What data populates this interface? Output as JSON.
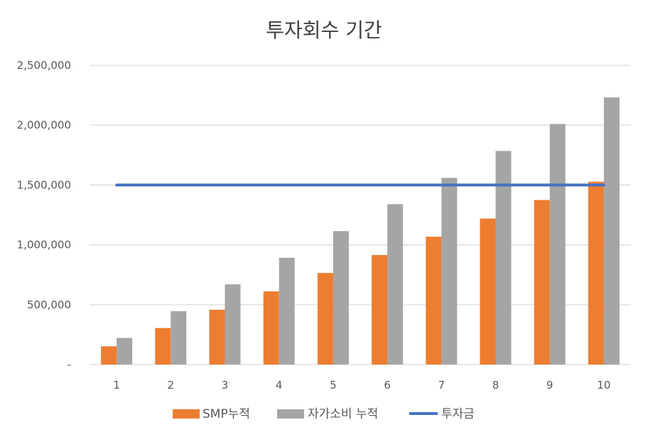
{
  "chart_data": {
    "type": "bar",
    "title": "투자회수 기간",
    "categories": [
      "1",
      "2",
      "3",
      "4",
      "5",
      "6",
      "7",
      "8",
      "9",
      "10"
    ],
    "y_ticks": [
      "-",
      "500,000",
      "1,000,000",
      "1,500,000",
      "2,000,000",
      "2,500,000"
    ],
    "ylim": [
      0,
      2500000
    ],
    "grid": true,
    "legend_position": "bottom",
    "series": [
      {
        "name": "SMP누적",
        "type": "bar",
        "color": "#ED7D31",
        "values": [
          152000,
          305000,
          458000,
          611000,
          765000,
          915000,
          1068000,
          1220000,
          1375000,
          1528000
        ]
      },
      {
        "name": "자가소비 누적",
        "type": "bar",
        "color": "#A5A5A5",
        "values": [
          222000,
          446000,
          670000,
          892000,
          1115000,
          1340000,
          1560000,
          1785000,
          2010000,
          2232000
        ]
      },
      {
        "name": "투자금",
        "type": "line",
        "color": "#4472C4",
        "values": [
          1500000,
          1500000,
          1500000,
          1500000,
          1500000,
          1500000,
          1500000,
          1500000,
          1500000,
          1500000
        ]
      }
    ]
  }
}
